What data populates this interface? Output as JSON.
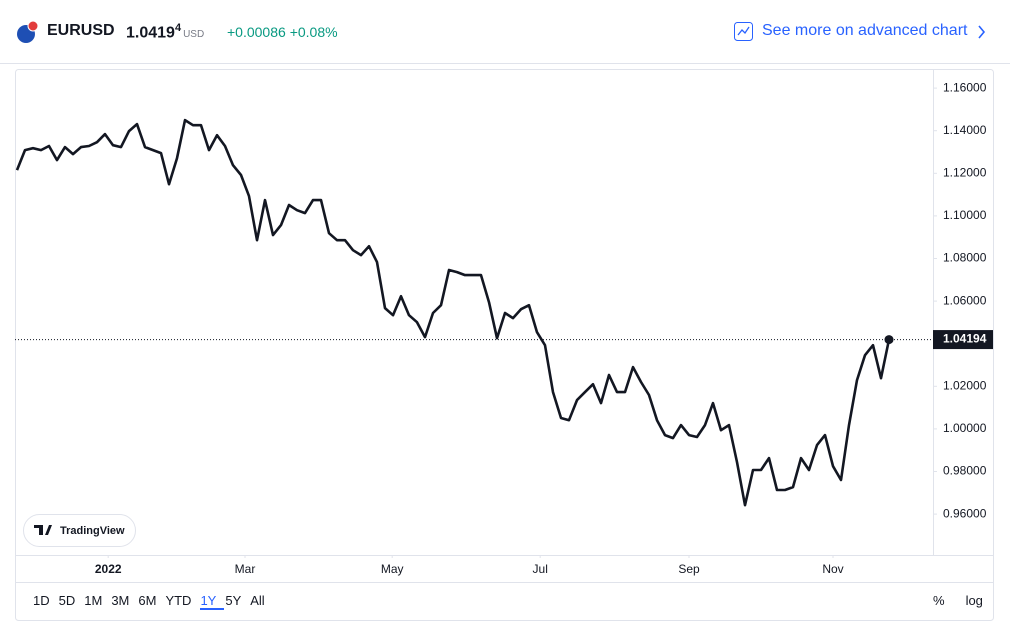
{
  "header": {
    "symbol": "EURUSD",
    "price": "1.0419",
    "price_sup": "4",
    "currency": "USD",
    "change": "+0.00086",
    "change_pct": "+0.08%",
    "link": "See more on advanced chart"
  },
  "chart_data": {
    "type": "line",
    "color": "#131722",
    "log_scale": false,
    "series": [
      {
        "color": "#131722",
        "values": [
          1.1215,
          1.1309,
          1.1318,
          1.1309,
          1.1328,
          1.1262,
          1.1323,
          1.129,
          1.1323,
          1.1328,
          1.1346,
          1.1384,
          1.1332,
          1.1323,
          1.1398,
          1.1431,
          1.1323,
          1.1309,
          1.1295,
          1.1149,
          1.1271,
          1.145,
          1.1426,
          1.1426,
          1.1309,
          1.1379,
          1.1328,
          1.1238,
          1.1192,
          1.1093,
          1.0886,
          1.1074,
          1.091,
          1.0957,
          1.1051,
          1.1027,
          1.1013,
          1.1074,
          1.1074,
          1.0919,
          1.0886,
          1.0886,
          1.0839,
          1.0816,
          1.0858,
          1.0783,
          1.0567,
          1.0534,
          1.0623,
          1.0534,
          1.0501,
          1.0431,
          1.0544,
          1.0581,
          1.0746,
          1.0736,
          1.0722,
          1.0722,
          1.0722,
          1.0595,
          1.0426,
          1.0544,
          1.052,
          1.0562,
          1.0581,
          1.0454,
          1.0393,
          1.0173,
          1.0051,
          1.0041,
          1.0135,
          1.0173,
          1.021,
          1.0121,
          1.0253,
          1.0173,
          1.0173,
          1.029,
          1.022,
          1.0159,
          1.0041,
          0.9971,
          0.9957,
          1.0018,
          0.9971,
          0.9962,
          1.0018,
          1.0121,
          0.9994,
          1.0018,
          0.9844,
          0.9642,
          0.9807,
          0.9807,
          0.9863,
          0.9713,
          0.9713,
          0.9727,
          0.9863,
          0.9807,
          0.9924,
          0.9971,
          0.9825,
          0.976,
          1.0018,
          1.0229,
          1.0346,
          1.0393,
          1.0238,
          1.04194
        ]
      }
    ],
    "last_price": {
      "value": 1.04194,
      "label": "1.04194"
    },
    "ylim": [
      0.9408,
      1.1685
    ],
    "yticks": [
      {
        "value": 0.96,
        "label": "0.96000"
      },
      {
        "value": 0.98,
        "label": "0.98000"
      },
      {
        "value": 1.0,
        "label": "1.00000"
      },
      {
        "value": 1.02,
        "label": "1.02000"
      },
      {
        "value": 1.04,
        "label": "1.04000"
      },
      {
        "value": 1.06,
        "label": "1.06000"
      },
      {
        "value": 1.08,
        "label": "1.08000"
      },
      {
        "value": 1.1,
        "label": "1.10000"
      },
      {
        "value": 1.12,
        "label": "1.12000"
      },
      {
        "value": 1.14,
        "label": "1.14000"
      },
      {
        "value": 1.16,
        "label": "1.16000"
      }
    ],
    "xlim": [
      -0.25,
      114.5
    ],
    "xticks": [
      {
        "value": 11.4,
        "label": "2022"
      },
      {
        "value": 28.5,
        "label": "Mar"
      },
      {
        "value": 46.9,
        "label": "May"
      },
      {
        "value": 65.4,
        "label": "Jul"
      },
      {
        "value": 84,
        "label": "Sep"
      },
      {
        "value": 102,
        "label": "Nov"
      }
    ]
  },
  "watermark": "TradingView",
  "ranges": [
    "1D",
    "5D",
    "1M",
    "3M",
    "6M",
    "YTD",
    "1Y",
    "5Y",
    "All"
  ],
  "active_range": 6,
  "toggles": [
    "%",
    "log"
  ]
}
